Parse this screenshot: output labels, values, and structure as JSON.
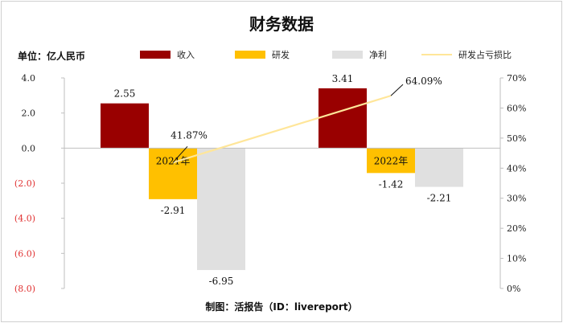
{
  "header": {
    "title": "财务数据",
    "unit": "单位：亿人民币"
  },
  "legend": [
    {
      "label": "收入",
      "color": "#990000",
      "kind": "bar"
    },
    {
      "label": "研发",
      "color": "#ffc000",
      "kind": "bar"
    },
    {
      "label": "净利",
      "color": "#e0e0e0",
      "kind": "bar"
    },
    {
      "label": "研发占亏损比",
      "color": "#ffe699",
      "kind": "line"
    }
  ],
  "footer": {
    "source": "制图：活报告（ID：livereport）"
  },
  "chart_data": {
    "type": "bar",
    "categories": [
      "2021年",
      "2022年"
    ],
    "series": [
      {
        "name": "收入",
        "values": [
          2.55,
          3.41
        ],
        "labels": [
          "2.55",
          "3.41"
        ],
        "color": "#990000"
      },
      {
        "name": "研发",
        "values": [
          -2.91,
          -1.42
        ],
        "labels": [
          "-2.91",
          "-1.42"
        ],
        "color": "#ffc000"
      },
      {
        "name": "净利",
        "values": [
          -6.95,
          -2.21
        ],
        "labels": [
          "-6.95",
          "-2.21"
        ],
        "color": "#e0e0e0"
      }
    ],
    "line_series": {
      "name": "研发占亏损比",
      "type": "line",
      "axis": "right",
      "values": [
        41.87,
        64.09
      ],
      "labels": [
        "41.87%",
        "64.09%"
      ],
      "color": "#ffe699"
    },
    "ylim": [
      -8,
      4
    ],
    "y_ticks": [
      4,
      2,
      0,
      -2,
      -4,
      -6,
      -8
    ],
    "y_tick_labels": [
      "4.0",
      "2.0",
      "0.0",
      "(2.0)",
      "(4.0)",
      "(6.0)",
      "(8.0)"
    ],
    "y_negative_color": "#e03030",
    "y2lim": [
      0,
      70
    ],
    "y2_ticks": [
      70,
      60,
      50,
      40,
      30,
      20,
      10,
      0
    ],
    "y2_tick_labels": [
      "70%",
      "60%",
      "50%",
      "40%",
      "30%",
      "20%",
      "10%",
      "0%"
    ],
    "grid": false
  }
}
